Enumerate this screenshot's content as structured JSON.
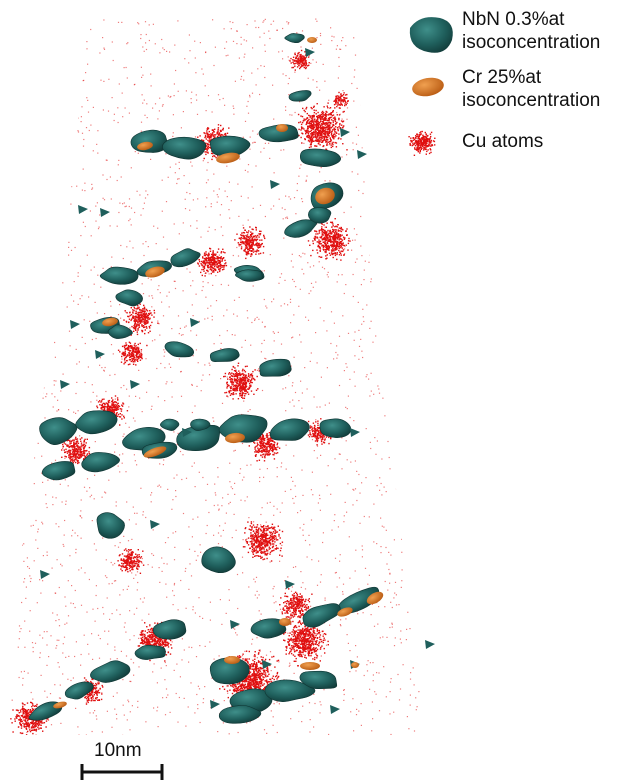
{
  "legend": {
    "items": [
      {
        "lines": [
          "NbN 0.3%at",
          "isoconcentration"
        ],
        "color": "#1f5f5c",
        "icon": "teal-isosurface-blob"
      },
      {
        "lines": [
          "Cr 25%at",
          "isoconcentration"
        ],
        "color": "#d9771f",
        "icon": "orange-isosurface-blob"
      },
      {
        "lines": [
          "Cu atoms"
        ],
        "color": "#e01010",
        "icon": "red-atom-cluster"
      }
    ]
  },
  "scale_bar": {
    "label": "10nm"
  },
  "colors": {
    "nbn": "#1f5f5c",
    "nbn_highlight": "#3a8a86",
    "cr": "#d9771f",
    "cu": "#e01010"
  }
}
